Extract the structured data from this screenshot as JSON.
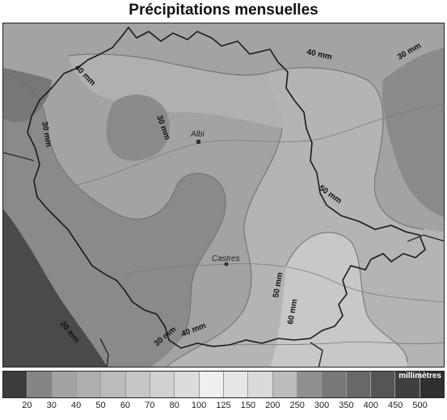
{
  "title": "Précipitations mensuelles",
  "cities": [
    {
      "id": "albi",
      "name": "Albi"
    },
    {
      "id": "castres",
      "name": "Castres"
    }
  ],
  "isolines": [
    {
      "id": "iso-40-north",
      "text": "40 mm"
    },
    {
      "id": "iso-30-northeast",
      "text": "30 mm"
    },
    {
      "id": "iso-40-northwest",
      "text": "40 mm"
    },
    {
      "id": "iso-30-west",
      "text": "30 mm"
    },
    {
      "id": "iso-30-center",
      "text": "30 mm"
    },
    {
      "id": "iso-50-east",
      "text": "50 mm"
    },
    {
      "id": "iso-50-south",
      "text": "50 mm"
    },
    {
      "id": "iso-60-south",
      "text": "60 mm"
    },
    {
      "id": "iso-20-southwest",
      "text": "20 mm"
    },
    {
      "id": "iso-30-south",
      "text": "30 mm"
    },
    {
      "id": "iso-40-south",
      "text": "40 mm"
    }
  ],
  "legend": {
    "unit": "millimètres",
    "classes": [
      "20",
      "30",
      "40",
      "50",
      "60",
      "70",
      "80",
      "100",
      "125",
      "150",
      "200",
      "250",
      "300",
      "350",
      "400",
      "450",
      "500"
    ],
    "colors": [
      "#3c3c3c",
      "#858585",
      "#a3a3a3",
      "#afafaf",
      "#bbbbbb",
      "#c6c6c6",
      "#d1d1d1",
      "#dcdcdc",
      "#efefef",
      "#e6e6e6",
      "#dadada",
      "#bcbcbc",
      "#8f8f8f",
      "#787878",
      "#686868",
      "#555555",
      "#3f3f3f",
      "#2f2f2f"
    ]
  },
  "colors": {
    "zone_20": "#4a4a4a",
    "zone_30": "#8a8a8a",
    "zone_40": "#a3a3a3",
    "zone_50": "#b4b4b4",
    "zone_60": "#c8c8c8",
    "border": "#1a1a1a",
    "river": "#7a7a7a"
  }
}
